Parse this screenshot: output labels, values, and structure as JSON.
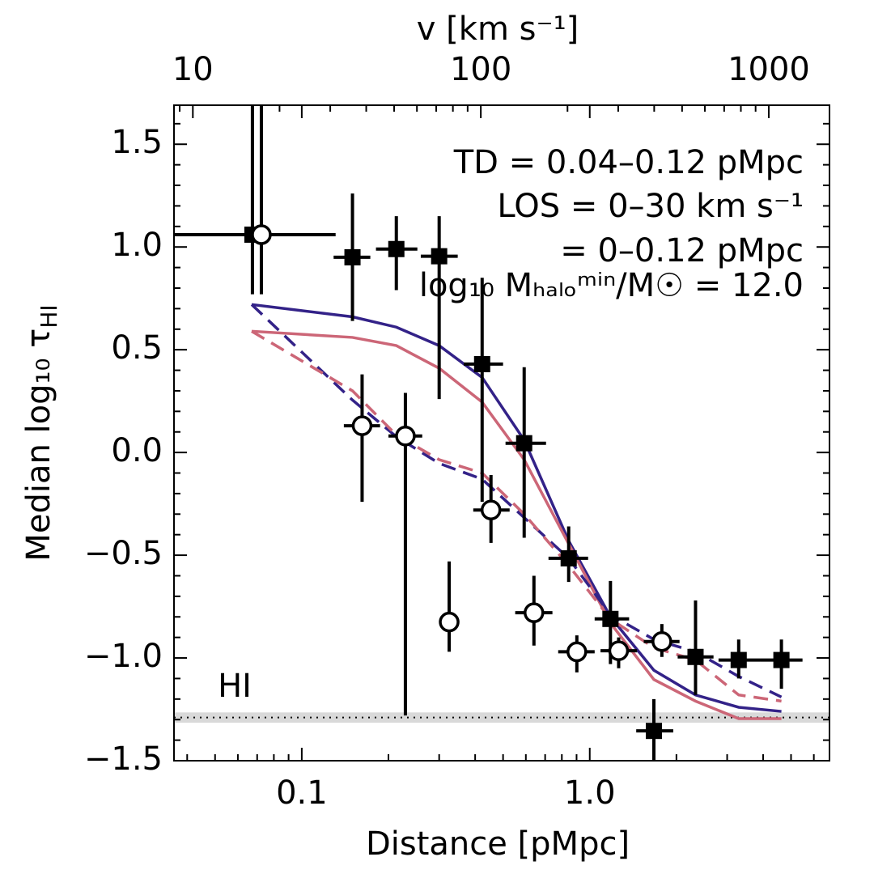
{
  "chart_data": {
    "type": "scatter",
    "xscale": "log",
    "x2scale": "log",
    "xlabel": "Distance [pMpc]",
    "x2label": "v [km s⁻¹]",
    "ylabel": "Median log₁₀ τ",
    "ylabel_sub": "HI",
    "xlim": [
      0.036,
      6.8
    ],
    "x2lim": [
      8.6,
      1625
    ],
    "ylim": [
      -1.5,
      1.69
    ],
    "xticks": [
      0.1,
      {
        "value": 1,
        "label": "1.0"
      }
    ],
    "xminor": [
      0.04,
      0.05,
      0.06,
      0.07,
      0.08,
      0.09,
      0.2,
      0.3,
      0.4,
      0.5,
      0.6,
      0.7,
      0.8,
      0.9,
      2,
      3,
      4,
      5,
      6
    ],
    "x2ticks": [
      10,
      100,
      1000
    ],
    "x2minor": [
      9,
      20,
      30,
      40,
      50,
      60,
      70,
      80,
      90,
      200,
      300,
      400,
      500,
      600,
      700,
      800,
      900
    ],
    "yticks": [
      {
        "value": -1.5,
        "label": "−1.5"
      },
      {
        "value": -1,
        "label": "−1.0"
      },
      {
        "value": -0.5,
        "label": "−0.5"
      },
      {
        "value": 0,
        "label": "0.0"
      },
      0.5,
      {
        "value": 1,
        "label": "1.0"
      },
      1.5
    ],
    "yminor": [
      -1.4,
      -1.3,
      -1.2,
      -1.1,
      -0.9,
      -0.8,
      -0.7,
      -0.6,
      -0.4,
      -0.3,
      -0.2,
      -0.1,
      0.1,
      0.2,
      0.3,
      0.4,
      0.6,
      0.7,
      0.8,
      0.9,
      1.1,
      1.2,
      1.3,
      1.4,
      1.6
    ],
    "annotations": [
      "TD = 0.04–0.12 pMpc",
      "LOS = 0–30 km s⁻¹",
      "= 0–0.12 pMpc",
      "log₁₀ Mₕₐₗₒᵐⁱⁿ/M☉ = 12.0"
    ],
    "species_label": "HI",
    "limit": -1.29,
    "limit_band": [
      -1.265,
      -1.315
    ],
    "band_color": "#d9d9d9",
    "lines": [
      {
        "color": "#332288",
        "dashed": false,
        "x": [
          0.067,
          0.15,
          0.213,
          0.3,
          0.423,
          0.592,
          0.845,
          1.18,
          1.67,
          2.33,
          3.29,
          4.63
        ],
        "y": [
          0.72,
          0.66,
          0.61,
          0.52,
          0.365,
          0.06,
          -0.43,
          -0.8,
          -1.06,
          -1.18,
          -1.24,
          -1.26
        ]
      },
      {
        "color": "#cc6677",
        "dashed": false,
        "x": [
          0.067,
          0.15,
          0.213,
          0.3,
          0.423,
          0.592,
          0.845,
          1.18,
          1.67,
          2.33,
          3.29,
          4.63
        ],
        "y": [
          0.59,
          0.56,
          0.52,
          0.41,
          0.245,
          -0.035,
          -0.445,
          -0.83,
          -1.105,
          -1.21,
          -1.295,
          -1.295
        ]
      },
      {
        "color": "#332288",
        "dashed": true,
        "x": [
          0.067,
          0.15,
          0.213,
          0.3,
          0.423,
          0.592,
          0.845,
          1.18,
          1.67,
          2.33,
          3.29,
          4.63
        ],
        "y": [
          0.72,
          0.255,
          0.077,
          -0.053,
          -0.13,
          -0.317,
          -0.515,
          -0.79,
          -0.91,
          -0.97,
          -1.09,
          -1.19
        ]
      },
      {
        "color": "#cc6677",
        "dashed": true,
        "x": [
          0.067,
          0.15,
          0.213,
          0.3,
          0.423,
          0.592,
          0.845,
          1.18,
          1.67,
          2.33,
          3.29,
          4.63
        ],
        "y": [
          0.59,
          0.3,
          0.085,
          -0.035,
          -0.1,
          -0.3,
          -0.55,
          -0.81,
          -0.95,
          -1.01,
          -1.18,
          -1.21
        ]
      }
    ],
    "series": [
      {
        "marker": "square",
        "color": "#000000",
        "x": [
          0.0674,
          0.15,
          0.213,
          0.3,
          0.423,
          0.592,
          0.845,
          1.18,
          1.67,
          2.33,
          3.29,
          4.63
        ],
        "y": [
          1.06,
          0.95,
          0.99,
          0.955,
          0.43,
          0.045,
          -0.515,
          -0.81,
          -1.355,
          -0.995,
          -1.01,
          -1.01
        ],
        "x_lo": [
          0.03,
          0.129,
          0.181,
          0.259,
          0.365,
          0.51,
          0.719,
          1.04,
          1.45,
          2.02,
          2.8,
          3.91
        ],
        "x_hi": [
          0.131,
          0.173,
          0.252,
          0.348,
          0.5,
          0.705,
          0.987,
          1.37,
          1.95,
          2.69,
          3.91,
          5.48
        ],
        "y_lo": [
          0.77,
          0.64,
          0.79,
          0.26,
          -0.24,
          -0.415,
          -0.63,
          -1.03,
          -1.6,
          -1.18,
          -1.1,
          -1.15
        ],
        "y_hi": [
          2.0,
          1.26,
          1.15,
          1.15,
          0.85,
          0.415,
          -0.36,
          -0.625,
          -1.2,
          -0.72,
          -0.91,
          -0.91
        ]
      },
      {
        "marker": "circle",
        "color": "#000000",
        "x": [
          0.0724,
          0.162,
          0.229,
          0.325,
          0.454,
          0.64,
          0.902,
          1.26,
          1.78
        ],
        "y": [
          1.06,
          0.13,
          0.08,
          -0.825,
          -0.28,
          -0.78,
          -0.97,
          -0.965,
          -0.92
        ],
        "x_lo": [
          0.03,
          0.14,
          0.2,
          0.3,
          0.394,
          0.551,
          0.777,
          1.09,
          1.54
        ],
        "x_hi": [
          0.131,
          0.187,
          0.262,
          0.35,
          0.527,
          0.742,
          1.04,
          1.46,
          2.05
        ],
        "y_lo": [
          0.77,
          -0.24,
          -1.28,
          -0.97,
          -0.44,
          -0.94,
          -1.07,
          -1.05,
          -0.995
        ],
        "y_hi": [
          2.0,
          0.38,
          0.29,
          -0.53,
          -0.11,
          -0.6,
          -0.89,
          -0.9,
          -0.835
        ]
      }
    ]
  }
}
